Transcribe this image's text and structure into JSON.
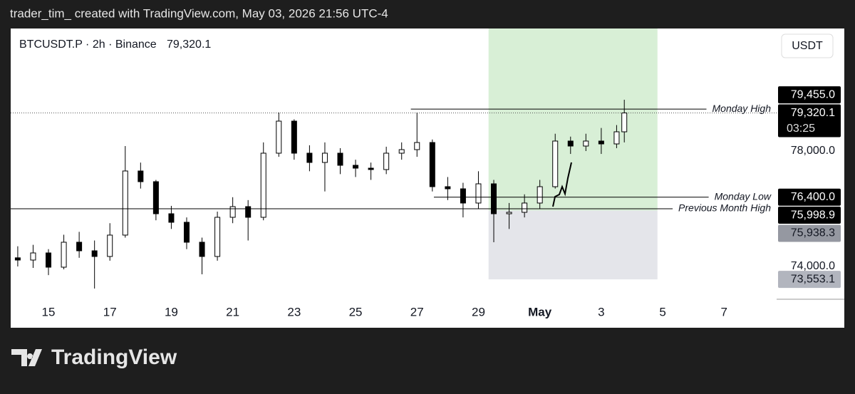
{
  "header": {
    "text": "trader_tim_ created with TradingView.com, May 03, 2026 21:56 UTC-4"
  },
  "brand": {
    "text": "TradingView"
  },
  "chart_data": {
    "type": "candlestick",
    "title": "BTCUSDT.P · 2h · Binance",
    "last_price": {
      "value": 79320.1,
      "label": "79,320.1"
    },
    "countdown": "03:25",
    "currency": "USDT",
    "up_color": "#ffffff",
    "down_color": "#000000",
    "x": [
      14,
      14.5,
      15,
      15.5,
      16,
      16.5,
      17,
      17.5,
      18,
      18.5,
      19,
      19.5,
      20,
      20.5,
      21,
      21.5,
      22,
      22.5,
      23,
      23.5,
      24,
      24.5,
      25,
      25.5,
      26,
      26.5,
      27,
      27.5,
      28,
      28.5,
      29,
      29.5,
      30,
      30.5,
      31,
      31.5,
      32,
      32.5,
      33,
      33.5,
      33.75
    ],
    "open": [
      74300,
      74222,
      74469,
      73975,
      74840,
      74543,
      74346,
      75087,
      77309,
      76938,
      75827,
      75531,
      74840,
      74346,
      75704,
      76074,
      75704,
      77926,
      79037,
      77926,
      77605,
      77926,
      77506,
      77407,
      77358,
      77926,
      78049,
      78296,
      76765,
      76691,
      76198,
      76864,
      75827,
      75877,
      76198,
      76765,
      78346,
      78173,
      78346,
      78247,
      78667
    ],
    "high": [
      74700,
      74750,
      74600,
      75100,
      75200,
      74900,
      75500,
      78173,
      77600,
      77000,
      76100,
      75700,
      75000,
      75900,
      76400,
      76300,
      78300,
      79333,
      79100,
      78200,
      78300,
      78100,
      77700,
      77600,
      78150,
      78300,
      79333,
      78400,
      77100,
      76900,
      77300,
      77000,
      76200,
      76500,
      77000,
      78600,
      78500,
      78600,
      78800,
      78900,
      79778
    ],
    "low": [
      74000,
      73950,
      73700,
      73900,
      74300,
      73235,
      74200,
      75000,
      76700,
      75600,
      75300,
      74600,
      73728,
      74200,
      75500,
      74900,
      75600,
      77800,
      77700,
      77300,
      76600,
      77200,
      77100,
      77000,
      77200,
      77700,
      77800,
      76600,
      76300,
      75700,
      76000,
      74840,
      75300,
      75700,
      76000,
      76700,
      77900,
      78000,
      77900,
      78100,
      78300
    ],
    "close": [
      74222,
      74469,
      73975,
      74840,
      74543,
      74346,
      75087,
      77309,
      76938,
      75827,
      75531,
      74840,
      74346,
      75704,
      76074,
      75704,
      77926,
      79037,
      77926,
      77605,
      77926,
      77506,
      77407,
      77358,
      77926,
      78049,
      78296,
      76765,
      76691,
      76198,
      76864,
      75827,
      75877,
      76198,
      76765,
      78346,
      78173,
      78346,
      78247,
      78667,
      79320.1
    ],
    "xlim": [
      13.77,
      38.71
    ],
    "xticks": [
      15,
      17,
      19,
      21,
      23,
      25,
      27,
      29,
      {
        "value": 31,
        "label": "May"
      },
      {
        "value": 33,
        "label": "3"
      },
      {
        "value": 35,
        "label": "5"
      },
      {
        "value": 37,
        "label": "7"
      }
    ],
    "ylim": [
      72864,
      82247
    ],
    "yticks": [
      {
        "value": 74000,
        "label": "74,000.0"
      },
      {
        "value": 78000,
        "label": "78,000.0"
      }
    ],
    "levels": [
      {
        "name": "Monday High",
        "value": 79455.0,
        "label": "79,455.0",
        "from": 26.8
      },
      {
        "name": "Monday Low",
        "value": 76400.0,
        "label": "76,400.0",
        "from": 27.55
      },
      {
        "name": "Previous Month High",
        "value": 75998.9,
        "label": "75,998.9"
      }
    ],
    "position": {
      "from": 29.33,
      "to": 34.83,
      "entry": {
        "value": 75938.3,
        "label": "75,938.3"
      },
      "stop": {
        "value": 73553.1,
        "label": "73,553.1"
      }
    }
  }
}
